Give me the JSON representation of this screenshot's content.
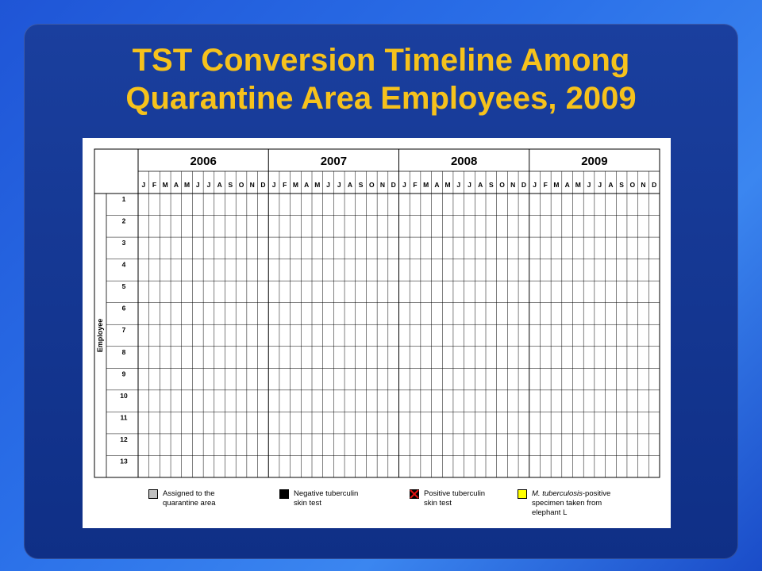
{
  "title": {
    "line1": "TST Conversion Timeline Among",
    "line2": "Quarantine Area Employees, 2009"
  },
  "timeline": {
    "years": [
      "2006",
      "2007",
      "2008",
      "2009"
    ],
    "months": [
      "J",
      "F",
      "M",
      "A",
      "M",
      "J",
      "J",
      "A",
      "S",
      "O",
      "N",
      "D"
    ],
    "row_axis_label": "Employee",
    "employees": [
      "1",
      "2",
      "3",
      "4",
      "5",
      "6",
      "7",
      "8",
      "9",
      "10",
      "11",
      "12",
      "13"
    ]
  },
  "legend": {
    "assigned": {
      "line1": "Assigned to the",
      "line2": "quarantine area",
      "color": "#c0c0c0"
    },
    "negative": {
      "line1": "Negative tuberculin",
      "line2": "skin test",
      "color": "#000000"
    },
    "positive": {
      "line1": "Positive tuberculin",
      "line2": "skin test",
      "color": "#d11a1a"
    },
    "specimen": {
      "line1_italic": "M. tuberculosis",
      "line1_rest": "-positive",
      "line2": "specimen taken from",
      "line3": "elephant L",
      "color": "#ffff00"
    }
  },
  "colors": {
    "title": "#f6c21c",
    "background": "#1f55d6"
  }
}
